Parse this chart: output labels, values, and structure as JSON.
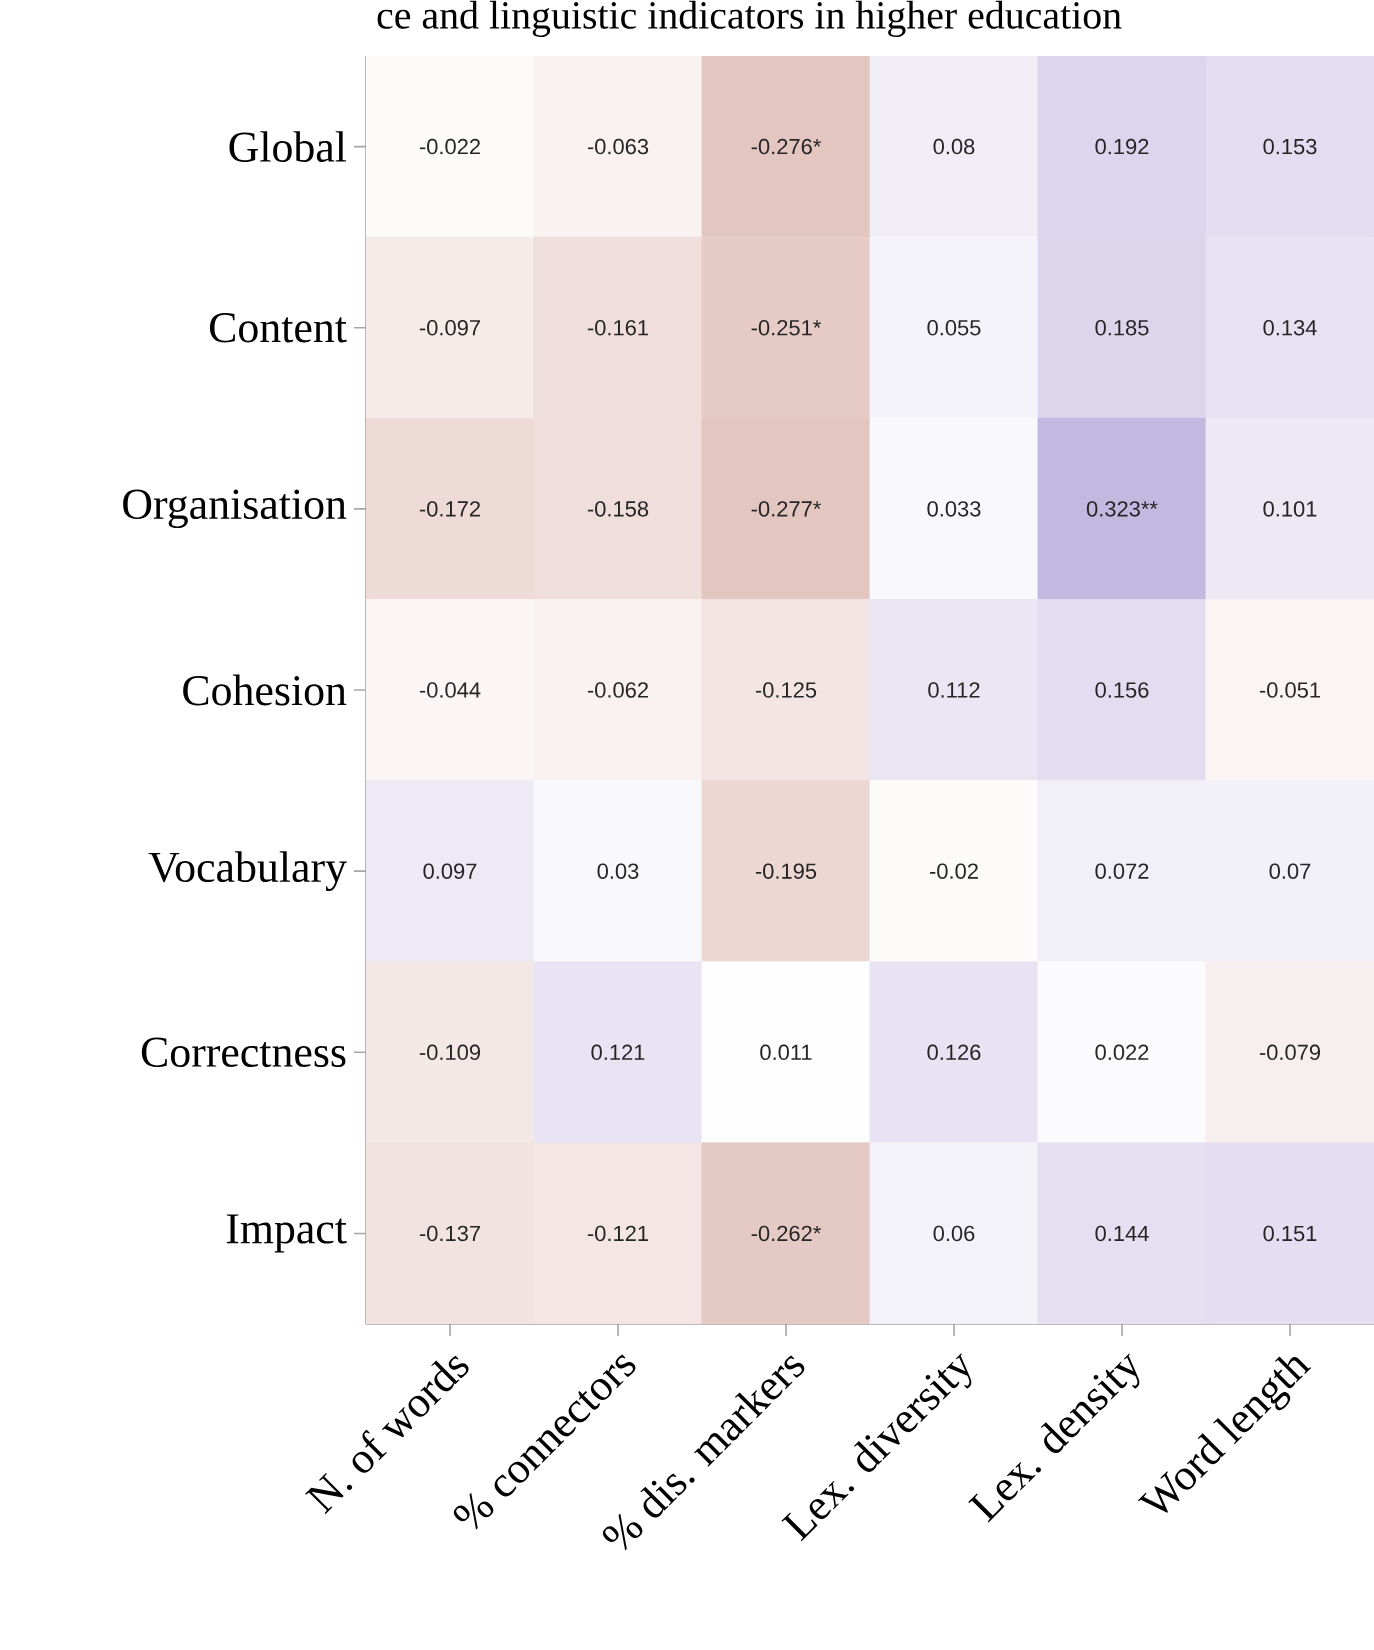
{
  "chart_data": {
    "type": "heatmap",
    "title": "ce and linguistic indicators in higher education",
    "categories": [
      "N. of words",
      "% connectors",
      "% dis. markers",
      "Lex. diversity",
      "Lex. density",
      "Word length"
    ],
    "y_categories": [
      "Global",
      "Content",
      "Organisation",
      "Cohesion",
      "Vocabulary",
      "Correctness",
      "Impact"
    ],
    "cells": [
      [
        -0.022,
        -0.063,
        -0.276,
        0.08,
        0.192,
        0.153
      ],
      [
        -0.097,
        -0.161,
        -0.251,
        0.055,
        0.185,
        0.134
      ],
      [
        -0.172,
        -0.158,
        -0.277,
        0.033,
        0.323,
        0.101
      ],
      [
        -0.044,
        -0.062,
        -0.125,
        0.112,
        0.156,
        -0.051
      ],
      [
        0.097,
        0.03,
        -0.195,
        -0.02,
        0.072,
        0.07
      ],
      [
        -0.109,
        0.121,
        0.011,
        0.126,
        0.022,
        -0.079
      ],
      [
        -0.137,
        -0.121,
        -0.262,
        0.06,
        0.144,
        0.151
      ]
    ],
    "cell_labels": [
      [
        "-0.022",
        "-0.063",
        "-0.276*",
        "0.08",
        "0.192",
        "0.153"
      ],
      [
        "-0.097",
        "-0.161",
        "-0.251*",
        "0.055",
        "0.185",
        "0.134"
      ],
      [
        "-0.172",
        "-0.158",
        "-0.277*",
        "0.033",
        "0.323**",
        "0.101"
      ],
      [
        "-0.044",
        "-0.062",
        "-0.125",
        "0.112",
        "0.156",
        "-0.051"
      ],
      [
        "0.097",
        "0.03",
        "-0.195",
        "-0.02",
        "0.072",
        "0.07"
      ],
      [
        "-0.109",
        "0.121",
        "0.011",
        "0.126",
        "0.022",
        "-0.079"
      ],
      [
        "-0.137",
        "-0.121",
        "-0.262*",
        "0.06",
        "0.144",
        "0.151"
      ]
    ]
  }
}
